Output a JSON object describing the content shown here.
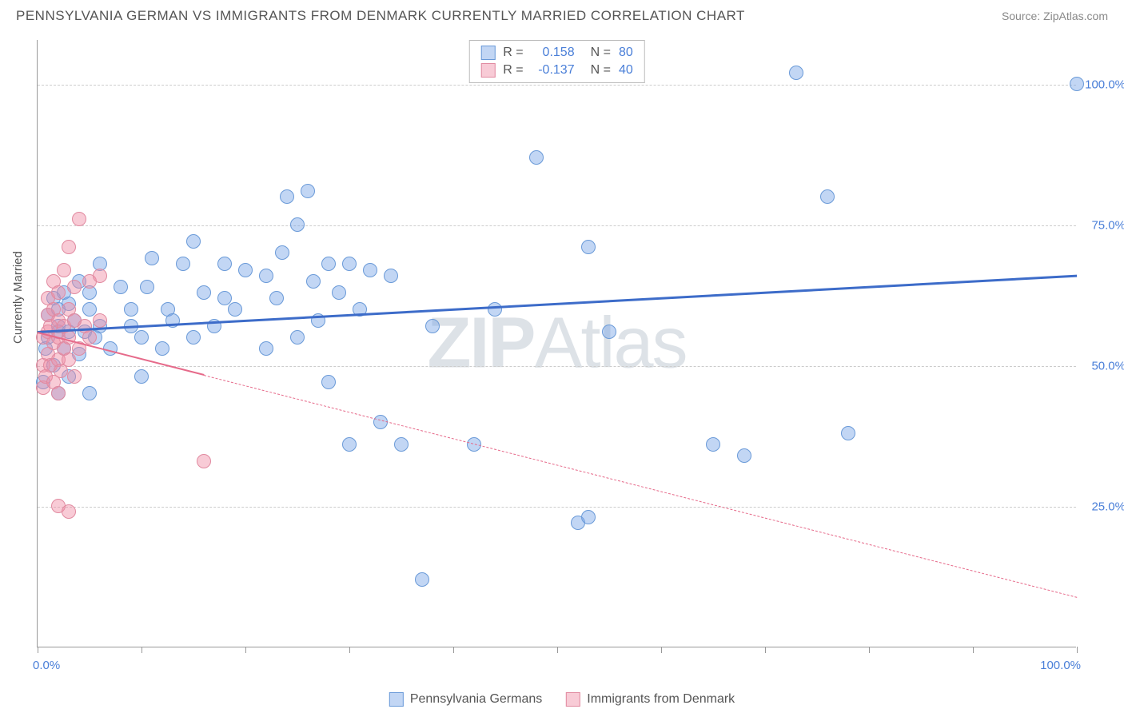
{
  "header": {
    "title": "PENNSYLVANIA GERMAN VS IMMIGRANTS FROM DENMARK CURRENTLY MARRIED CORRELATION CHART",
    "source": "Source: ZipAtlas.com"
  },
  "chart": {
    "type": "scatter",
    "background_color": "#ffffff",
    "grid_color": "#cccccc",
    "axis_color": "#999999",
    "y_axis_label": "Currently Married",
    "label_fontsize": 15,
    "label_color": "#555555",
    "xlim": [
      0,
      100
    ],
    "ylim": [
      0,
      108
    ],
    "y_ticks": [
      {
        "value": 25,
        "label": "25.0%"
      },
      {
        "value": 50,
        "label": "50.0%"
      },
      {
        "value": 75,
        "label": "75.0%"
      },
      {
        "value": 100,
        "label": "100.0%"
      }
    ],
    "x_ticks": [
      0,
      10,
      20,
      30,
      40,
      50,
      60,
      70,
      80,
      90,
      100
    ],
    "x_tick_labels": [
      {
        "value": 0,
        "label": "0.0%"
      },
      {
        "value": 100,
        "label": "100.0%"
      }
    ],
    "tick_label_color": "#4a7fd8",
    "watermark": {
      "text_bold": "ZIP",
      "text_normal": "Atlas",
      "color": "rgba(120,140,160,0.25)",
      "fontsize": 90
    },
    "series": [
      {
        "name": "Pennsylvania Germans",
        "marker_color_fill": "rgba(120,165,230,0.45)",
        "marker_color_stroke": "#6a9ad8",
        "marker_radius": 9,
        "R": "0.158",
        "N": "80",
        "stat_color": "#4a7fd8",
        "trend": {
          "x1": 0,
          "y1": 56,
          "x2": 100,
          "y2": 66,
          "color": "#3d6cc9",
          "width": 3,
          "solid_until_x": 100
        },
        "points": [
          [
            0.5,
            47
          ],
          [
            0.8,
            53
          ],
          [
            1,
            55
          ],
          [
            1,
            59
          ],
          [
            1.5,
            50
          ],
          [
            1.5,
            62
          ],
          [
            2,
            45
          ],
          [
            2,
            56
          ],
          [
            2,
            57
          ],
          [
            2,
            60
          ],
          [
            2.5,
            53
          ],
          [
            2.5,
            63
          ],
          [
            3,
            48
          ],
          [
            3,
            56
          ],
          [
            3,
            61
          ],
          [
            3.5,
            58
          ],
          [
            4,
            52
          ],
          [
            4,
            65
          ],
          [
            4.5,
            56
          ],
          [
            5,
            45
          ],
          [
            5,
            60
          ],
          [
            5,
            63
          ],
          [
            5.5,
            55
          ],
          [
            6,
            57
          ],
          [
            6,
            68
          ],
          [
            7,
            53
          ],
          [
            8,
            64
          ],
          [
            9,
            57
          ],
          [
            9,
            60
          ],
          [
            10,
            48
          ],
          [
            10,
            55
          ],
          [
            10.5,
            64
          ],
          [
            11,
            69
          ],
          [
            12,
            53
          ],
          [
            12.5,
            60
          ],
          [
            13,
            58
          ],
          [
            14,
            68
          ],
          [
            15,
            55
          ],
          [
            15,
            72
          ],
          [
            16,
            63
          ],
          [
            17,
            57
          ],
          [
            18,
            62
          ],
          [
            18,
            68
          ],
          [
            19,
            60
          ],
          [
            20,
            67
          ],
          [
            22,
            53
          ],
          [
            22,
            66
          ],
          [
            23,
            62
          ],
          [
            23.5,
            70
          ],
          [
            24,
            80
          ],
          [
            25,
            55
          ],
          [
            25,
            75
          ],
          [
            26,
            81
          ],
          [
            26.5,
            65
          ],
          [
            27,
            58
          ],
          [
            28,
            47
          ],
          [
            28,
            68
          ],
          [
            29,
            63
          ],
          [
            30,
            36
          ],
          [
            30,
            68
          ],
          [
            31,
            60
          ],
          [
            32,
            67
          ],
          [
            33,
            40
          ],
          [
            34,
            66
          ],
          [
            35,
            36
          ],
          [
            37,
            12
          ],
          [
            38,
            57
          ],
          [
            42,
            36
          ],
          [
            44,
            60
          ],
          [
            48,
            87
          ],
          [
            52,
            22
          ],
          [
            53,
            23
          ],
          [
            53,
            71
          ],
          [
            55,
            56
          ],
          [
            65,
            36
          ],
          [
            68,
            34
          ],
          [
            73,
            102
          ],
          [
            76,
            80
          ],
          [
            78,
            38
          ],
          [
            100,
            100
          ]
        ]
      },
      {
        "name": "Immigrants from Denmark",
        "marker_color_fill": "rgba(240,140,165,0.45)",
        "marker_color_stroke": "#e18aa0",
        "marker_radius": 9,
        "R": "-0.137",
        "N": "40",
        "stat_color": "#e66a8a",
        "trend": {
          "x1": 0,
          "y1": 56,
          "x2": 100,
          "y2": 9,
          "color": "#e66a8a",
          "width": 2,
          "solid_until_x": 16
        },
        "points": [
          [
            0.5,
            46
          ],
          [
            0.5,
            50
          ],
          [
            0.5,
            55
          ],
          [
            0.8,
            48
          ],
          [
            1,
            52
          ],
          [
            1,
            56
          ],
          [
            1,
            59
          ],
          [
            1,
            62
          ],
          [
            1.2,
            50
          ],
          [
            1.2,
            57
          ],
          [
            1.5,
            47
          ],
          [
            1.5,
            54
          ],
          [
            1.5,
            60
          ],
          [
            1.5,
            65
          ],
          [
            2,
            45
          ],
          [
            2,
            51
          ],
          [
            2,
            55
          ],
          [
            2,
            58
          ],
          [
            2,
            63
          ],
          [
            2.2,
            49
          ],
          [
            2.5,
            53
          ],
          [
            2.5,
            57
          ],
          [
            2.5,
            67
          ],
          [
            3,
            51
          ],
          [
            3,
            55
          ],
          [
            3,
            60
          ],
          [
            3,
            71
          ],
          [
            3.5,
            48
          ],
          [
            3.5,
            58
          ],
          [
            3.5,
            64
          ],
          [
            4,
            53
          ],
          [
            4,
            76
          ],
          [
            4.5,
            57
          ],
          [
            5,
            55
          ],
          [
            5,
            65
          ],
          [
            2,
            25
          ],
          [
            3,
            24
          ],
          [
            6,
            58
          ],
          [
            6,
            66
          ],
          [
            16,
            33
          ]
        ]
      }
    ],
    "stats_box": {
      "rows": [
        {
          "swatch_fill": "rgba(120,165,230,0.45)",
          "swatch_border": "#6a9ad8",
          "R_label": "R =",
          "R_val": "0.158",
          "N_label": "N =",
          "N_val": "80",
          "val_color": "#4a7fd8"
        },
        {
          "swatch_fill": "rgba(240,140,165,0.45)",
          "swatch_border": "#e18aa0",
          "R_label": "R =",
          "R_val": "-0.137",
          "N_label": "N =",
          "N_val": "40",
          "val_color": "#4a7fd8"
        }
      ]
    },
    "bottom_legend": [
      {
        "swatch_fill": "rgba(120,165,230,0.45)",
        "swatch_border": "#6a9ad8",
        "label": "Pennsylvania Germans"
      },
      {
        "swatch_fill": "rgba(240,140,165,0.45)",
        "swatch_border": "#e18aa0",
        "label": "Immigrants from Denmark"
      }
    ]
  }
}
